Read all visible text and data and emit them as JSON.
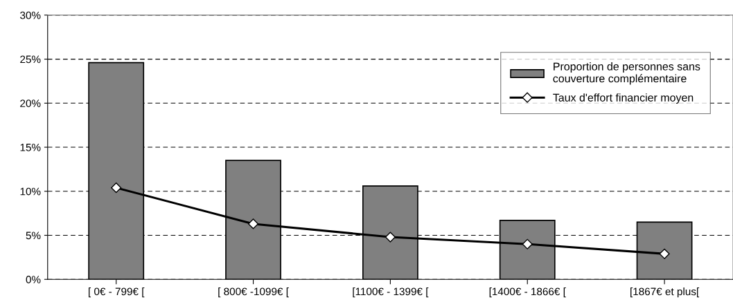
{
  "chart_data": {
    "type": "bar",
    "categories": [
      "[ 0€ - 799€ [",
      "[ 800€ -1099€ [",
      "[1100€ - 1399€ [",
      "[1400€ - 1866€ [",
      "[1867€ et plus["
    ],
    "series": [
      {
        "name": "Proportion de personnes sans\ncouverture complémentaire",
        "color": "#808080",
        "values": [
          24.6,
          13.5,
          10.6,
          6.7,
          6.5
        ]
      },
      {
        "name": "Taux d'effort financier moyen",
        "type": "line",
        "color": "#000000",
        "marker": "diamond",
        "values": [
          10.4,
          6.3,
          4.8,
          4.0,
          2.9
        ]
      }
    ],
    "ylim": [
      0,
      30
    ],
    "yticks": [
      {
        "value": 0,
        "label": "0%"
      },
      {
        "value": 5,
        "label": "5%"
      },
      {
        "value": 10,
        "label": "10%"
      },
      {
        "value": 15,
        "label": "15%"
      },
      {
        "value": 20,
        "label": "20%"
      },
      {
        "value": 25,
        "label": "25%"
      },
      {
        "value": 30,
        "label": "30%"
      }
    ],
    "grid": "y",
    "legend": "top right"
  }
}
